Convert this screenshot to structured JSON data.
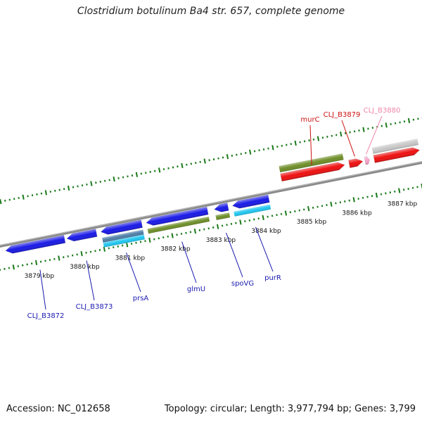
{
  "title": "Clostridium botulinum Ba4 str. 657, complete genome",
  "footer": {
    "accession": "Accession: NC_012658",
    "summary": "Topology: circular; Length: 3,977,794 bp; Genes: 3,799"
  },
  "colors": {
    "backbone": "#8a8a8a",
    "tick": "#1a7a1a",
    "strand_reverse": "#1a1ae6",
    "strand_forward": "#ee1111",
    "gene_olive": "#6f8f2a",
    "gene_cyan": "#22c6f0",
    "gene_steel": "#4f7fa8",
    "gene_pink": "#f7a3c8",
    "gene_gray": "#c8c8c8",
    "label_blue": "#1a1ab0",
    "label_red": "#cc1111",
    "label_pink": "#ee88aa"
  },
  "scale": {
    "unit": "kbp",
    "labels": [
      {
        "kbp": 3879,
        "text": "3879 kbp"
      },
      {
        "kbp": 3880,
        "text": "3880 kbp"
      },
      {
        "kbp": 3881,
        "text": "3881 kbp"
      },
      {
        "kbp": 3882,
        "text": "3882 kbp"
      },
      {
        "kbp": 3883,
        "text": "3883 kbp"
      },
      {
        "kbp": 3884,
        "text": "3884 kbp"
      },
      {
        "kbp": 3885,
        "text": "3885 kbp"
      },
      {
        "kbp": 3886,
        "text": "3886 kbp"
      },
      {
        "kbp": 3887,
        "text": "3887 kbp"
      }
    ]
  },
  "features": [
    {
      "name": "CLJ_B3872",
      "start_kbp": 3878.4,
      "end_kbp": 3879.7,
      "strand": "reverse",
      "color": "strand_reverse",
      "label_color": "label_blue"
    },
    {
      "name": "CLJ_B3873",
      "start_kbp": 3879.75,
      "end_kbp": 3880.4,
      "strand": "reverse",
      "color": "strand_reverse",
      "label_color": "label_blue"
    },
    {
      "name": "prsA",
      "start_kbp": 3880.5,
      "end_kbp": 3881.4,
      "strand": "reverse",
      "color": "strand_reverse",
      "label_color": "label_blue"
    },
    {
      "name": "glmU",
      "start_kbp": 3881.5,
      "end_kbp": 3882.85,
      "strand": "reverse",
      "color": "strand_reverse",
      "label_color": "label_blue"
    },
    {
      "name": "spoVG",
      "start_kbp": 3883.0,
      "end_kbp": 3883.3,
      "strand": "reverse",
      "color": "strand_reverse",
      "label_color": "label_blue"
    },
    {
      "name": "purR",
      "start_kbp": 3883.4,
      "end_kbp": 3884.2,
      "strand": "reverse",
      "color": "strand_reverse",
      "label_color": "label_blue"
    },
    {
      "name": "murC",
      "start_kbp": 3884.55,
      "end_kbp": 3885.95,
      "strand": "forward",
      "color": "strand_forward",
      "label_color": "label_red"
    },
    {
      "name": "CLJ_B3879",
      "start_kbp": 3886.05,
      "end_kbp": 3886.35,
      "strand": "forward",
      "color": "strand_forward",
      "label_color": "label_red"
    },
    {
      "name": "CLJ_B3880",
      "start_kbp": 3886.4,
      "end_kbp": 3886.5,
      "strand": "forward",
      "color": "gene_pink",
      "label_color": "label_pink"
    },
    {
      "name": "",
      "start_kbp": 3886.6,
      "end_kbp": 3887.6,
      "strand": "forward",
      "color": "strand_forward",
      "label_color": "label_red"
    }
  ],
  "annotation_bars": [
    {
      "start_kbp": 3880.5,
      "end_kbp": 3881.4,
      "color": "gene_steel",
      "side": "reverse"
    },
    {
      "start_kbp": 3880.5,
      "end_kbp": 3881.4,
      "color": "gene_cyan",
      "side": "reverse"
    },
    {
      "start_kbp": 3881.5,
      "end_kbp": 3882.85,
      "color": "gene_olive",
      "side": "reverse"
    },
    {
      "start_kbp": 3883.0,
      "end_kbp": 3883.3,
      "color": "gene_olive",
      "side": "reverse"
    },
    {
      "start_kbp": 3883.4,
      "end_kbp": 3884.2,
      "color": "gene_cyan",
      "side": "reverse"
    },
    {
      "start_kbp": 3884.55,
      "end_kbp": 3885.95,
      "color": "gene_olive",
      "side": "forward"
    },
    {
      "start_kbp": 3886.6,
      "end_kbp": 3887.6,
      "color": "gene_gray",
      "side": "forward"
    }
  ],
  "view": {
    "start_kbp": 3878.3,
    "end_kbp": 3887.6
  }
}
